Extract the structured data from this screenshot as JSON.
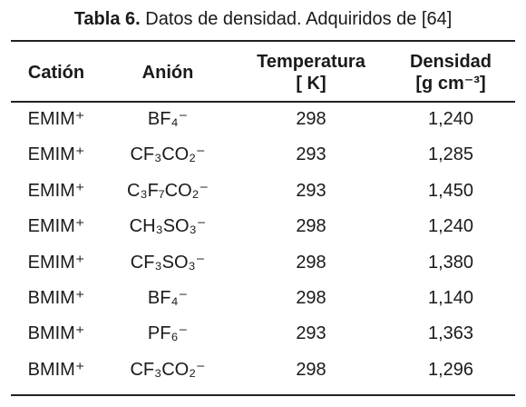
{
  "caption": {
    "label": "Tabla 6.",
    "text": "Datos de densidad. Adquiridos de [64]"
  },
  "table": {
    "header": [
      [
        "Catión"
      ],
      [
        "Anión"
      ],
      [
        "Temperatura",
        "[ K]"
      ],
      [
        "Densidad",
        "[g cm⁻³]"
      ]
    ],
    "rows": [
      [
        "EMIM⁺",
        "BF₄⁻",
        "298",
        "1,240"
      ],
      [
        "EMIM⁺",
        "CF₃CO₂⁻",
        "293",
        "1,285"
      ],
      [
        "EMIM⁺",
        "C₃F₇CO₂⁻",
        "293",
        "1,450"
      ],
      [
        "EMIM⁺",
        "CH₃SO₃⁻",
        "298",
        "1,240"
      ],
      [
        "EMIM⁺",
        "CF₃SO₃⁻",
        "298",
        "1,380"
      ],
      [
        "BMIM⁺",
        "BF₄⁻",
        "298",
        "1,140"
      ],
      [
        "BMIM⁺",
        "PF₆⁻",
        "293",
        "1,363"
      ],
      [
        "BMIM⁺",
        "CF₃CO₂⁻",
        "298",
        "1,296"
      ]
    ]
  }
}
